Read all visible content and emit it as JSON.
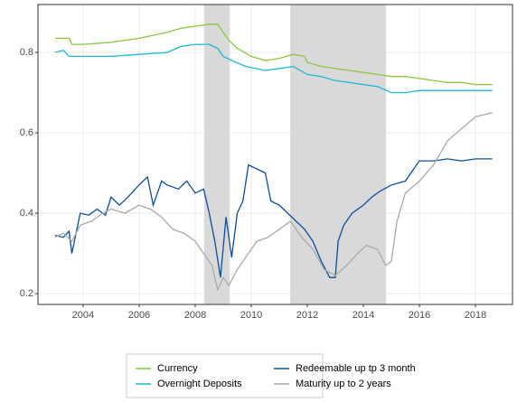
{
  "chart_data": {
    "type": "line",
    "xlim": [
      2002.39,
      2019.32
    ],
    "xticks": [
      2004,
      2006,
      2008,
      2010,
      2012,
      2014,
      2016,
      2018
    ],
    "ylim": [
      0.173,
      0.919
    ],
    "yticks": [
      0.2,
      0.4,
      0.6,
      0.8
    ],
    "grid": true,
    "legend": "bottom",
    "shaded_periods": [
      [
        2008.32,
        2009.23
      ],
      [
        2011.39,
        2014.81
      ]
    ],
    "series": [
      {
        "name": "Currency",
        "color": "#8cc63f",
        "x": [
          2003,
          2003.5,
          2003.6,
          2004,
          2005,
          2006,
          2007,
          2007.5,
          2008,
          2008.5,
          2008.8,
          2009,
          2009.2,
          2009.5,
          2010,
          2010.5,
          2011,
          2011.5,
          2011.9,
          2012,
          2012.5,
          2013,
          2013.5,
          2014,
          2014.5,
          2015,
          2015.5,
          2016,
          2016.5,
          2017,
          2017.5,
          2018,
          2018.6
        ],
        "values": [
          0.835,
          0.835,
          0.82,
          0.82,
          0.825,
          0.835,
          0.85,
          0.86,
          0.865,
          0.87,
          0.87,
          0.85,
          0.83,
          0.81,
          0.79,
          0.78,
          0.785,
          0.795,
          0.79,
          0.775,
          0.765,
          0.76,
          0.755,
          0.75,
          0.745,
          0.74,
          0.74,
          0.735,
          0.73,
          0.725,
          0.725,
          0.72,
          0.72
        ]
      },
      {
        "name": "Overnight Deposits",
        "color": "#1fb6d8",
        "x": [
          2003,
          2003.3,
          2003.5,
          2004,
          2005,
          2006,
          2007,
          2007.5,
          2008,
          2008.5,
          2008.8,
          2009,
          2009.3,
          2009.8,
          2010.5,
          2011,
          2011.5,
          2012,
          2012.5,
          2013,
          2013.5,
          2014,
          2014.5,
          2015,
          2015.5,
          2016,
          2016.5,
          2017,
          2017.5,
          2018,
          2018.6
        ],
        "values": [
          0.8,
          0.805,
          0.79,
          0.79,
          0.79,
          0.795,
          0.8,
          0.815,
          0.82,
          0.82,
          0.81,
          0.79,
          0.78,
          0.765,
          0.755,
          0.76,
          0.765,
          0.745,
          0.74,
          0.73,
          0.725,
          0.72,
          0.715,
          0.7,
          0.7,
          0.705,
          0.705,
          0.705,
          0.705,
          0.705,
          0.705
        ]
      },
      {
        "name": "Redeemable up tp 3 month",
        "color": "#0b4f9a",
        "x": [
          2003,
          2003.3,
          2003.5,
          2003.6,
          2003.9,
          2004.2,
          2004.5,
          2004.8,
          2005,
          2005.3,
          2005.6,
          2006,
          2006.3,
          2006.5,
          2006.8,
          2007,
          2007.4,
          2007.7,
          2008,
          2008.3,
          2008.5,
          2008.7,
          2008.9,
          2009.1,
          2009.3,
          2009.5,
          2009.7,
          2009.9,
          2010.2,
          2010.5,
          2010.7,
          2011,
          2011.3,
          2011.6,
          2011.9,
          2012.2,
          2012.5,
          2012.8,
          2013,
          2013.1,
          2013.3,
          2013.6,
          2014,
          2014.3,
          2014.6,
          2015,
          2015.5,
          2015.8,
          2016,
          2016.5,
          2017,
          2017.5,
          2018,
          2018.6
        ],
        "values": [
          0.345,
          0.34,
          0.355,
          0.3,
          0.4,
          0.395,
          0.41,
          0.395,
          0.44,
          0.42,
          0.44,
          0.47,
          0.49,
          0.42,
          0.48,
          0.47,
          0.46,
          0.48,
          0.45,
          0.46,
          0.4,
          0.33,
          0.24,
          0.39,
          0.29,
          0.4,
          0.43,
          0.52,
          0.51,
          0.5,
          0.43,
          0.42,
          0.4,
          0.38,
          0.36,
          0.33,
          0.28,
          0.24,
          0.24,
          0.33,
          0.37,
          0.4,
          0.42,
          0.44,
          0.455,
          0.47,
          0.48,
          0.51,
          0.53,
          0.53,
          0.535,
          0.53,
          0.535,
          0.535
        ]
      },
      {
        "name": "Maturity up to 2 years",
        "color": "#aaaaaa",
        "x": [
          2003,
          2003.3,
          2003.6,
          2003.9,
          2004.3,
          2004.7,
          2005,
          2005.5,
          2006,
          2006.4,
          2006.8,
          2007.2,
          2007.6,
          2008,
          2008.3,
          2008.6,
          2008.8,
          2009,
          2009.2,
          2009.5,
          2009.8,
          2010.2,
          2010.6,
          2011,
          2011.4,
          2011.8,
          2012.2,
          2012.6,
          2013,
          2013.4,
          2013.8,
          2014.1,
          2014.5,
          2014.8,
          2015,
          2015.2,
          2015.5,
          2016,
          2016.5,
          2017,
          2017.5,
          2018,
          2018.6
        ],
        "values": [
          0.34,
          0.35,
          0.33,
          0.37,
          0.38,
          0.4,
          0.41,
          0.4,
          0.42,
          0.41,
          0.39,
          0.36,
          0.35,
          0.33,
          0.3,
          0.27,
          0.21,
          0.24,
          0.22,
          0.26,
          0.29,
          0.33,
          0.34,
          0.36,
          0.38,
          0.34,
          0.31,
          0.26,
          0.245,
          0.27,
          0.3,
          0.32,
          0.31,
          0.27,
          0.28,
          0.38,
          0.45,
          0.48,
          0.52,
          0.58,
          0.61,
          0.64,
          0.65
        ]
      }
    ]
  }
}
